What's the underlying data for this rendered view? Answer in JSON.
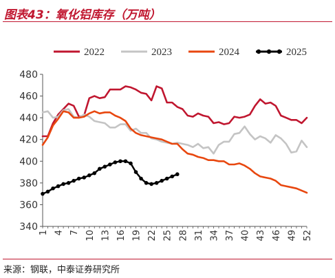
{
  "figure": {
    "title": "图表43：氧化铝库存（万吨）",
    "source": "来源：钢联，中泰证券研究所"
  },
  "chart_data": {
    "type": "line",
    "ylim": [
      340,
      480
    ],
    "yticks": [
      340,
      360,
      380,
      400,
      420,
      440,
      460,
      480
    ],
    "xticks": [
      1,
      4,
      7,
      10,
      13,
      16,
      19,
      22,
      25,
      28,
      31,
      34,
      37,
      40,
      43,
      46,
      49,
      52
    ],
    "x_range": [
      1,
      52
    ],
    "grid": false,
    "legend_position": "top",
    "series": [
      {
        "name": "2022",
        "color": "#c0162f",
        "x": [
          1,
          2,
          3,
          4,
          5,
          6,
          7,
          8,
          9,
          10,
          11,
          12,
          13,
          14,
          15,
          16,
          17,
          18,
          19,
          20,
          21,
          22,
          23,
          24,
          25,
          26,
          27,
          28,
          29,
          30,
          31,
          32,
          33,
          34,
          35,
          36,
          37,
          38,
          39,
          40,
          41,
          42,
          43,
          44,
          45,
          46,
          47,
          48,
          49,
          50,
          51,
          52
        ],
        "values": [
          423,
          423,
          435,
          443,
          448,
          453,
          451,
          441,
          442,
          458,
          460,
          458,
          459,
          466,
          466,
          466,
          469,
          468,
          466,
          463,
          462,
          456,
          469,
          467,
          454,
          454,
          450,
          448,
          442,
          441,
          444,
          442,
          441,
          435,
          436,
          434,
          435,
          441,
          440,
          441,
          443,
          451,
          457,
          453,
          454,
          451,
          442,
          440,
          438,
          438,
          435,
          440
        ]
      },
      {
        "name": "2023",
        "color": "#c4c4c4",
        "x": [
          1,
          2,
          3,
          4,
          5,
          6,
          7,
          8,
          9,
          10,
          11,
          12,
          13,
          14,
          15,
          16,
          17,
          18,
          19,
          20,
          21,
          22,
          23,
          24,
          25,
          26,
          27,
          28,
          29,
          30,
          31,
          32,
          33,
          34,
          35,
          36,
          37,
          38,
          39,
          40,
          41,
          42,
          43,
          44,
          45,
          46,
          47,
          48,
          49,
          50,
          51,
          52
        ],
        "values": [
          445,
          446,
          440,
          441,
          447,
          448,
          441,
          440,
          443,
          441,
          437,
          436,
          435,
          431,
          431,
          434,
          434,
          428,
          430,
          426,
          426,
          421,
          420,
          418,
          417,
          416,
          417,
          416,
          415,
          413,
          416,
          412,
          413,
          407,
          415,
          418,
          418,
          425,
          426,
          432,
          425,
          420,
          423,
          421,
          417,
          424,
          421,
          416,
          408,
          409,
          419,
          413
        ]
      },
      {
        "name": "2024",
        "color": "#e8470f",
        "x": [
          1,
          2,
          3,
          4,
          5,
          6,
          7,
          8,
          9,
          10,
          11,
          12,
          13,
          14,
          15,
          16,
          17,
          18,
          19,
          20,
          21,
          22,
          23,
          24,
          25,
          26,
          27,
          28,
          29,
          30,
          31,
          32,
          33,
          34,
          35,
          36,
          37,
          38,
          39,
          40,
          41,
          42,
          43,
          44,
          45,
          46,
          47,
          48,
          49,
          50,
          51,
          52
        ],
        "values": [
          415,
          422,
          433,
          439,
          446,
          445,
          440,
          440,
          441,
          444,
          446,
          444,
          445,
          445,
          442,
          440,
          437,
          430,
          426,
          424,
          423,
          422,
          421,
          420,
          418,
          416,
          416,
          411,
          407,
          406,
          404,
          403,
          401,
          401,
          400,
          400,
          397,
          397,
          398,
          396,
          393,
          389,
          386,
          385,
          384,
          382,
          378,
          377,
          376,
          375,
          373,
          371
        ]
      },
      {
        "name": "2025",
        "color": "#000000",
        "x": [
          1,
          2,
          3,
          4,
          5,
          6,
          7,
          8,
          9,
          10,
          11,
          12,
          13,
          14,
          15,
          16,
          17,
          18,
          19,
          20,
          21,
          22,
          23,
          24,
          25,
          26,
          27
        ],
        "values": [
          370,
          372,
          375,
          377,
          379,
          380,
          382,
          384,
          385,
          387,
          389,
          393,
          395,
          397,
          399,
          400,
          400,
          398,
          390,
          384,
          380,
          379,
          380,
          382,
          384,
          386,
          388
        ]
      }
    ]
  }
}
